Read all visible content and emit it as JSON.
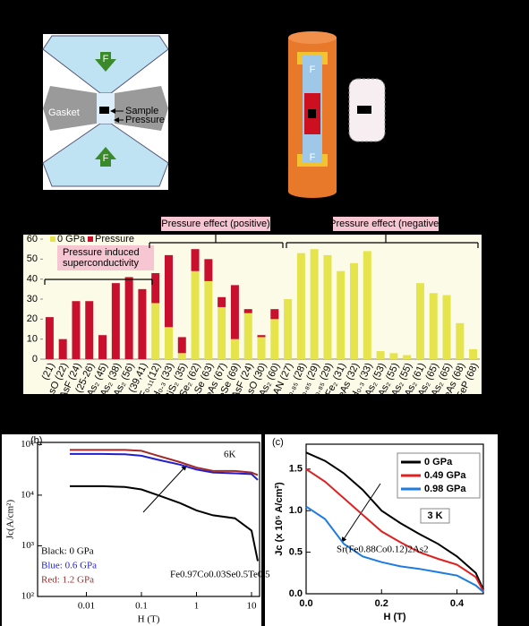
{
  "chart_data": [
    {
      "type": "bar",
      "stacked": true,
      "categories": [
        "(21)",
        "AsO (22)",
        "eAsF (24)",
        "H (25-26)",
        "As₂ (45)",
        "eAs₂ (38)",
        "e₂As₂ (56)",
        "₂ (39,41)",
        "F₀.₁₁(12)",
        "H₀.₃ (33)",
        "BiS₂ (35)",
        "₃Se₂ (62)",
        "₁₋ₓSe (63)",
        "FeAs (67)",
        "FeSe (69)",
        "AsF (24)",
        "AsO (30)",
        "As₂ (60)",
        "AN (27)",
        "O₀.₈₅ (28)",
        "O₀.₈₅ (29)",
        "O₀.₈₅ (29)",
        "Fe₂ (31)",
        "FeAs (32)",
        "H₀.₃ (33)",
        "As₂ (53)",
        "As₂ (55)",
        "As₂ (55)",
        "As₂ (61)",
        "As₂ (65)",
        "As₂ (65)",
        "FeAs (68)",
        "FeP (68)"
      ],
      "series": [
        {
          "name": "0 GPa",
          "color": "#e6e44c",
          "values": [
            0,
            0,
            0,
            0,
            0,
            0,
            0,
            0,
            28,
            16,
            3,
            44,
            39,
            26,
            10,
            23,
            11,
            20,
            30,
            53,
            55,
            52,
            44,
            48,
            54,
            4,
            3,
            2,
            38,
            33,
            32,
            18,
            5
          ]
        },
        {
          "name": "Pressure",
          "color": "#c8102e",
          "values": [
            21,
            10,
            29,
            29,
            12,
            38,
            41,
            35,
            15,
            36,
            8,
            11,
            11,
            5,
            27,
            2,
            1,
            5,
            0,
            0,
            0,
            0,
            0,
            0,
            0,
            0,
            0,
            0,
            0,
            0,
            0,
            0,
            0
          ]
        }
      ],
      "ylim": [
        0,
        60
      ],
      "yticks": [
        0,
        10,
        20,
        30,
        40,
        50,
        60
      ],
      "grid": false,
      "annotations": {
        "induced": [
          "Pressure induced",
          "superconductivity"
        ],
        "positive": "Pressure effect (positive)",
        "negative": "Pressure effect (negative)"
      }
    },
    {
      "type": "line",
      "panel_label": "(b)",
      "temperature": "6K",
      "xlabel": "H (T)",
      "ylabel": "Jc(A/cm²)",
      "composition": "Fe0.97Co0.03Se0.5Te0.5",
      "log_x": true,
      "log_y": true,
      "legend": "lower left",
      "x": [
        0.005,
        0.01,
        0.02,
        0.05,
        0.1,
        0.2,
        0.5,
        1,
        2,
        5,
        10,
        13
      ],
      "series": [
        {
          "name": "Black: 0 GPa",
          "color": "#000000",
          "values": [
            15000,
            15000,
            15000,
            14500,
            13000,
            10000,
            7000,
            5000,
            4000,
            3500,
            2000,
            500
          ]
        },
        {
          "name": "Blue: 0.6 GPa",
          "color": "#1f1fd0",
          "values": [
            65000,
            65000,
            65000,
            64000,
            60000,
            50000,
            40000,
            32000,
            28000,
            27000,
            26000,
            20000
          ]
        },
        {
          "name": "Red: 1.2 GPa",
          "color": "#a52a2a",
          "values": [
            78000,
            78000,
            78000,
            78000,
            75000,
            60000,
            45000,
            35000,
            30000,
            30000,
            28000,
            25000
          ]
        }
      ],
      "xlim": [
        0.0013,
        14
      ],
      "xticks": [
        0.01,
        0.1,
        1,
        10
      ],
      "ylim": [
        100,
        110000
      ],
      "yticks": [
        {
          "value": 100,
          "label": "10²"
        },
        {
          "value": 1000,
          "label": "10³"
        },
        {
          "value": 10000,
          "label": "10⁴"
        },
        {
          "value": 100000,
          "label": "10⁵"
        }
      ]
    },
    {
      "type": "line",
      "panel_label": "(c)",
      "temperature": "3 K",
      "xlabel": "H (T)",
      "ylabel": "Jc (x 10⁵ A/cm²)",
      "composition": "Sr(Fe0.88Co0.12)2As2",
      "log_x": false,
      "log_y": false,
      "legend": "upper right",
      "x": [
        0,
        0.05,
        0.1,
        0.15,
        0.2,
        0.25,
        0.3,
        0.35,
        0.4,
        0.45,
        0.47
      ],
      "series": [
        {
          "name": "0 GPa",
          "color": "#000000",
          "values": [
            1.7,
            1.6,
            1.45,
            1.25,
            1.0,
            0.85,
            0.72,
            0.6,
            0.45,
            0.25,
            0.05
          ]
        },
        {
          "name": "0.49 GPa",
          "color": "#e02020",
          "values": [
            1.5,
            1.35,
            1.15,
            0.95,
            0.75,
            0.62,
            0.5,
            0.42,
            0.35,
            0.2,
            0.03
          ]
        },
        {
          "name": "0.98 GPa",
          "color": "#1e7be0",
          "values": [
            1.05,
            0.9,
            0.6,
            0.45,
            0.38,
            0.33,
            0.3,
            0.26,
            0.22,
            0.1,
            0.02
          ]
        }
      ],
      "xlim": [
        0,
        0.47
      ],
      "xticks": [
        {
          "value": 0,
          "label": "0.0"
        },
        {
          "value": 0.2,
          "label": "0.2"
        },
        {
          "value": 0.4,
          "label": "0.4"
        }
      ],
      "ylim": [
        0,
        1.8
      ],
      "yticks": [
        {
          "value": 0,
          "label": "0.0"
        },
        {
          "value": 0.5,
          "label": "0.5"
        },
        {
          "value": 1,
          "label": "1.0"
        },
        {
          "value": 1.5,
          "label": "1.5"
        }
      ]
    }
  ],
  "diagram": {
    "anvil": {
      "gasket": "Gasket",
      "sample": "Sample",
      "pressure_medium": "Pressure me",
      "force": "F"
    },
    "cell": {
      "force": "F"
    }
  }
}
